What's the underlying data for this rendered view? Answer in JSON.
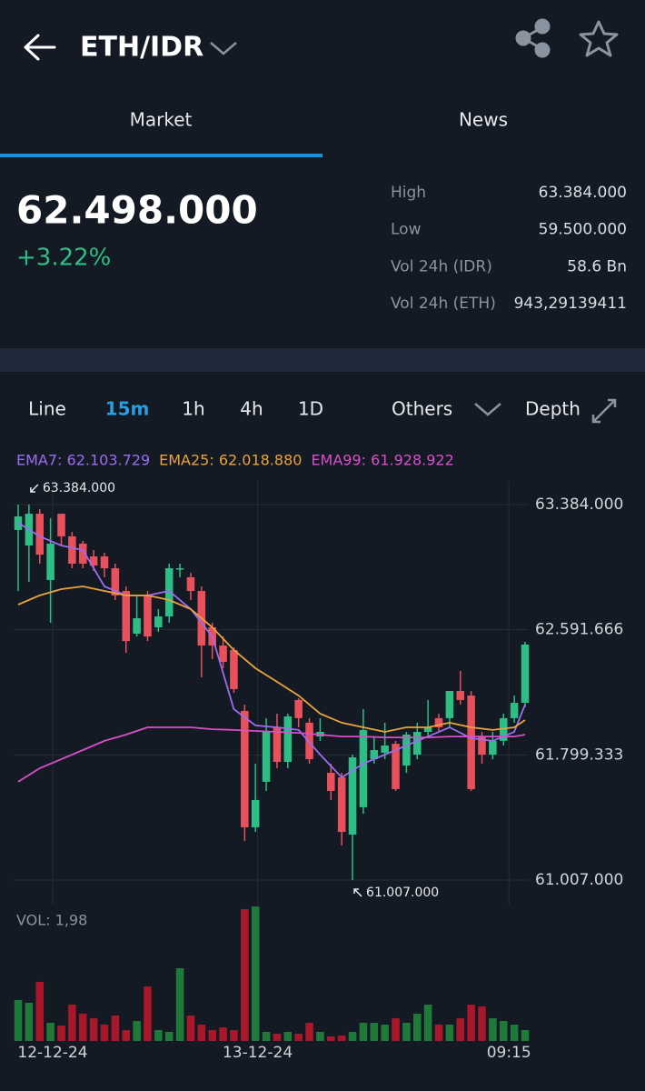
{
  "header": {
    "pair": "ETH/IDR"
  },
  "tabs": [
    "Market",
    "News"
  ],
  "ticker": {
    "price": "62.498.000",
    "change": "+3.22%"
  },
  "stats": [
    {
      "label": "High",
      "value": "63.384.000"
    },
    {
      "label": "Low",
      "value": "59.500.000"
    },
    {
      "label": "Vol 24h (IDR)",
      "value": "58.6 Bn"
    },
    {
      "label": "Vol 24h (ETH)",
      "value": "943,29139411"
    }
  ],
  "timeframes": [
    "Line",
    "15m",
    "1h",
    "4h",
    "1D"
  ],
  "menu": {
    "others": "Others",
    "depth": "Depth"
  },
  "chart_data": {
    "type": "candlestick",
    "up_color": "#2ebd85",
    "down_color": "#e8505b",
    "volume_up_color": "#1f7a3a",
    "volume_down_color": "#a8182a",
    "ylim": [
      61007000,
      63384000
    ],
    "yticks": [
      {
        "value": 63384000,
        "label": "63.384.000"
      },
      {
        "value": 62591666,
        "label": "62.591.666"
      },
      {
        "value": 61799333,
        "label": "61.799.333"
      },
      {
        "value": 61007000,
        "label": "61.007.000"
      }
    ],
    "xlim": [
      0,
      47
    ],
    "xticks": [
      {
        "value": 3.2,
        "label": "12-12-24"
      },
      {
        "value": 22.2,
        "label": "13-12-24"
      },
      {
        "value": 45.5,
        "label": "09:15"
      }
    ],
    "grid": true,
    "open": [
      63223000,
      63125000,
      63326000,
      62906000,
      63326000,
      63183000,
      63137000,
      63056000,
      63056000,
      62981000,
      62837000,
      62567000,
      62809000,
      62607000,
      62676000,
      62981000,
      62924000,
      62837000,
      62607000,
      62492000,
      62463000,
      62078000,
      61341000,
      61629000,
      61974000,
      61755000,
      62147000,
      62003000,
      61916000,
      61686000,
      61657000,
      61295000,
      61468000,
      61772000,
      61813000,
      61870000,
      61732000,
      61801000,
      61945000,
      62032000,
      62032000,
      62204000,
      62175000,
      61916000,
      61801000,
      61888000,
      62032000,
      62129000
    ],
    "high": [
      63384000,
      63384000,
      63355000,
      63298000,
      63326000,
      63211000,
      63154000,
      63096000,
      63079000,
      63010000,
      62866000,
      62809000,
      62837000,
      62722000,
      63010000,
      63010000,
      62952000,
      62866000,
      62636000,
      62549000,
      62480000,
      62118000,
      61744000,
      62032000,
      62060000,
      62060000,
      62158000,
      62032000,
      62032000,
      61744000,
      61686000,
      61801000,
      62089000,
      61916000,
      62003000,
      61888000,
      61945000,
      62003000,
      62147000,
      62060000,
      62204000,
      62331000,
      62204000,
      61945000,
      61945000,
      62060000,
      62175000,
      62515000
    ],
    "low": [
      62837000,
      62895000,
      63010000,
      62636000,
      63125000,
      62981000,
      62981000,
      62964000,
      62924000,
      62780000,
      62446000,
      62549000,
      62520000,
      62578000,
      62636000,
      62924000,
      62780000,
      62291000,
      62406000,
      62348000,
      62193000,
      61255000,
      61312000,
      61571000,
      61715000,
      61715000,
      61974000,
      61744000,
      61888000,
      61514000,
      61226000,
      61007000,
      61427000,
      61744000,
      61772000,
      61571000,
      61686000,
      61772000,
      61916000,
      61945000,
      61974000,
      62118000,
      61571000,
      61744000,
      61772000,
      61859000,
      62003000,
      62101000
    ],
    "close": [
      63309000,
      63326000,
      63067000,
      63137000,
      63183000,
      63010000,
      63010000,
      62998000,
      62981000,
      62809000,
      62520000,
      62665000,
      62549000,
      62676000,
      62981000,
      62981000,
      62837000,
      62492000,
      62492000,
      62388000,
      62216000,
      61341000,
      61514000,
      61945000,
      61755000,
      62043000,
      62032000,
      61772000,
      61945000,
      61571000,
      61312000,
      61784000,
      61957000,
      61830000,
      61859000,
      61583000,
      61928000,
      61945000,
      61974000,
      61974000,
      62204000,
      62147000,
      61583000,
      61801000,
      61888000,
      62032000,
      62129000,
      62498000
    ],
    "volume_label": "VOL: 1,98",
    "volume": [
      7.43,
      6.93,
      10.73,
      3.3,
      2.81,
      6.6,
      4.95,
      4.13,
      2.97,
      4.62,
      1.98,
      3.63,
      9.9,
      1.98,
      1.65,
      13.2,
      4.62,
      2.97,
      1.98,
      2.48,
      1.98,
      23.93,
      24.42,
      1.65,
      1.32,
      1.65,
      1.32,
      3.3,
      1.65,
      0.83,
      0.99,
      1.65,
      3.3,
      3.3,
      2.97,
      4.13,
      3.3,
      4.95,
      6.6,
      2.97,
      2.97,
      4.13,
      6.6,
      6.27,
      4.13,
      3.63,
      2.97,
      1.98
    ],
    "series": [
      {
        "label": "EMA7: 62.103.729",
        "color": "#9b6cf0",
        "x": [
          0,
          2,
          4,
          6,
          8,
          10,
          12,
          14,
          16,
          18,
          20,
          22,
          24,
          26,
          28,
          30,
          32,
          34,
          36,
          38,
          40,
          42,
          44,
          46,
          47
        ],
        "values": [
          63269000,
          63183000,
          63125000,
          63096000,
          62866000,
          62809000,
          62809000,
          62837000,
          62722000,
          62549000,
          62089000,
          61986000,
          61974000,
          61957000,
          61801000,
          61657000,
          61744000,
          61801000,
          61859000,
          61916000,
          61974000,
          61905000,
          61888000,
          61945000,
          62118000
        ]
      },
      {
        "label": "EMA25: 62.018.880",
        "color": "#e8a33d",
        "x": [
          0,
          2,
          4,
          6,
          8,
          10,
          12,
          14,
          16,
          18,
          20,
          22,
          24,
          26,
          28,
          30,
          32,
          34,
          36,
          38,
          40,
          42,
          44,
          46,
          47
        ],
        "values": [
          62751000,
          62809000,
          62849000,
          62866000,
          62837000,
          62809000,
          62809000,
          62780000,
          62722000,
          62607000,
          62463000,
          62348000,
          62262000,
          62175000,
          62060000,
          62003000,
          61974000,
          61945000,
          61974000,
          61974000,
          62003000,
          61974000,
          61957000,
          61974000,
          62020000
        ]
      },
      {
        "label": "EMA99: 61.928.922",
        "color": "#d94fc9",
        "x": [
          0,
          2,
          4,
          6,
          8,
          10,
          12,
          14,
          16,
          18,
          20,
          22,
          24,
          26,
          28,
          30,
          32,
          34,
          36,
          38,
          40,
          42,
          44,
          46,
          47
        ],
        "values": [
          61629000,
          61715000,
          61772000,
          61830000,
          61888000,
          61928000,
          61974000,
          61974000,
          61974000,
          61962000,
          61957000,
          61951000,
          61945000,
          61939000,
          61928000,
          61916000,
          61916000,
          61910000,
          61910000,
          61910000,
          61916000,
          61916000,
          61916000,
          61916000,
          61928000
        ]
      }
    ],
    "annotations": [
      {
        "label": "63.384.000",
        "value": 63384000,
        "x": 1
      },
      {
        "label": "61.007.000",
        "value": 61007000,
        "x": 31
      }
    ]
  }
}
